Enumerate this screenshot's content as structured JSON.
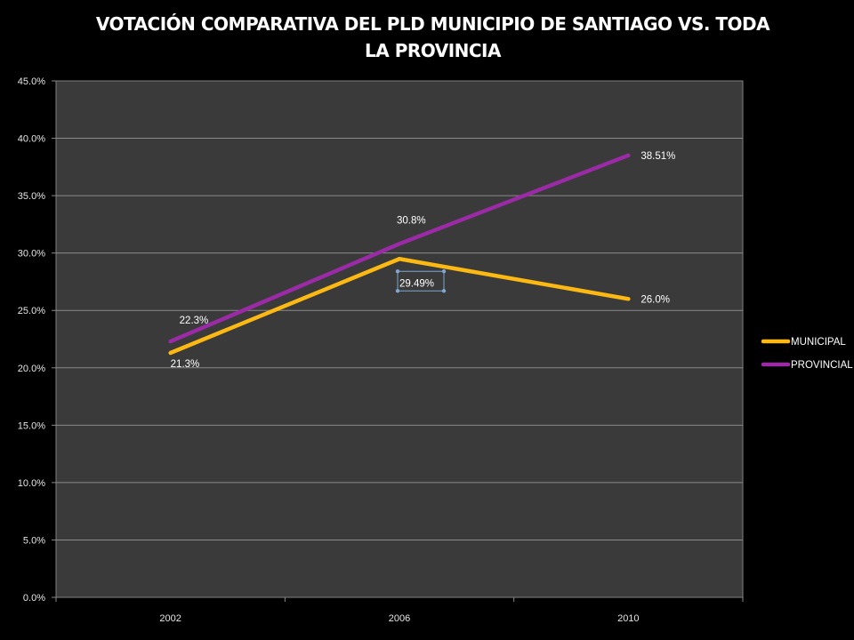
{
  "chart_data": {
    "type": "line",
    "title_lines": [
      "VOTACIÓN COMPARATIVA DEL PLD MUNICIPIO DE SANTIAGO VS. TODA",
      "LA PROVINCIA"
    ],
    "categories": [
      "2002",
      "2006",
      "2010"
    ],
    "y_ticks": [
      "0.0%",
      "5.0%",
      "10.0%",
      "15.0%",
      "20.0%",
      "25.0%",
      "30.0%",
      "35.0%",
      "40.0%",
      "45.0%"
    ],
    "ylim": [
      0,
      45
    ],
    "grid": true,
    "legend_position": "right",
    "background": "#3a3a3a",
    "series": [
      {
        "name": "MUNICIPAL",
        "color": "#fdb913",
        "values": [
          21.3,
          29.49,
          26.0
        ],
        "labels": [
          "21.3%",
          "29.49%",
          "26.0%"
        ]
      },
      {
        "name": "PROVINCIAL",
        "color": "#9b2aa6",
        "values": [
          22.3,
          30.8,
          38.51
        ],
        "labels": [
          "22.3%",
          "30.8%",
          "38.51%"
        ]
      }
    ]
  }
}
